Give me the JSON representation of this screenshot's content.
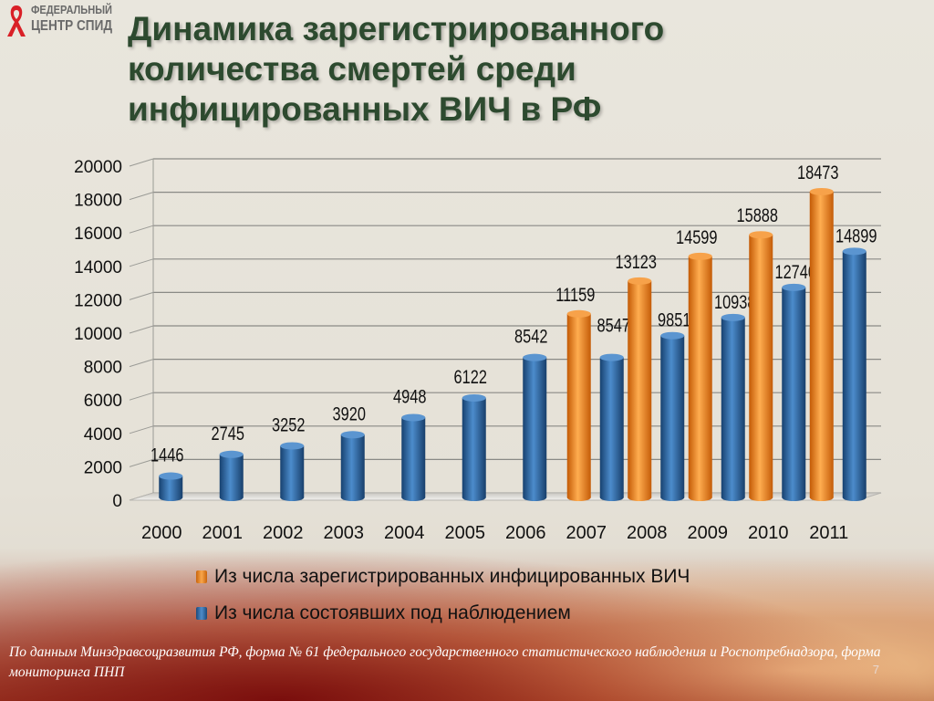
{
  "logo": {
    "line1": "ФЕДЕРАЛЬНЫЙ",
    "line2": "ЦЕНТР СПИД",
    "ribbon_color": "#d92027"
  },
  "title_lines": [
    "Динамика зарегистрированного",
    "количества смертей среди",
    "инфицированных ВИЧ в РФ"
  ],
  "colors": {
    "orange": "#f28a1c",
    "blue": "#2e6aa8",
    "title": "#2d4a2f"
  },
  "chart_data": {
    "type": "bar",
    "categories": [
      "2000",
      "2001",
      "2002",
      "2003",
      "2004",
      "2005",
      "2006",
      "2007",
      "2008",
      "2009",
      "2010",
      "2011"
    ],
    "series": [
      {
        "name": "Из числа зарегистрированных инфицированных ВИЧ",
        "color": "orange",
        "values": [
          null,
          null,
          null,
          null,
          null,
          null,
          null,
          11159,
          13123,
          14599,
          15888,
          18473
        ]
      },
      {
        "name": "Из числа состоявших под наблюдением",
        "color": "blue",
        "values": [
          1446,
          2745,
          3252,
          3920,
          4948,
          6122,
          8542,
          8547,
          9851,
          10938,
          12740,
          14899
        ]
      }
    ],
    "ylim": [
      0,
      20000
    ],
    "yticks": [
      0,
      2000,
      4000,
      6000,
      8000,
      10000,
      12000,
      14000,
      16000,
      18000,
      20000
    ],
    "grid": true,
    "legend_position": "bottom"
  },
  "source_text": "По данным Минздравсоцразвития РФ, форма № 61 федерального государственного статистического наблюдения и Роспотребнадзора, форма мониторинга ПНП",
  "page_number": "7"
}
